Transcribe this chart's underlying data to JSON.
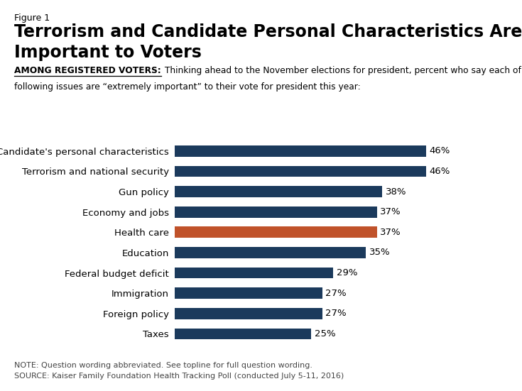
{
  "figure_label": "Figure 1",
  "title_line1": "Terrorism and Candidate Personal Characteristics Are Most",
  "title_line2": "Important to Voters",
  "subtitle_bold": "AMONG REGISTERED VOTERS:",
  "subtitle_rest": " Thinking ahead to the November elections for president, percent who say each of the\nfollowing issues are “extremely important” to their vote for president this year:",
  "categories": [
    "Candidate's personal characteristics",
    "Terrorism and national security",
    "Gun policy",
    "Economy and jobs",
    "Health care",
    "Education",
    "Federal budget deficit",
    "Immigration",
    "Foreign policy",
    "Taxes"
  ],
  "values": [
    46,
    46,
    38,
    37,
    37,
    35,
    29,
    27,
    27,
    25
  ],
  "bar_colors": [
    "#1b3a5c",
    "#1b3a5c",
    "#1b3a5c",
    "#1b3a5c",
    "#c0522a",
    "#1b3a5c",
    "#1b3a5c",
    "#1b3a5c",
    "#1b3a5c",
    "#1b3a5c"
  ],
  "note_line1": "NOTE: Question wording abbreviated. See topline for full question wording.",
  "note_line2": "SOURCE: Kaiser Family Foundation Health Tracking Poll (conducted July 5-11, 2016)",
  "background_color": "#ffffff",
  "text_color": "#000000",
  "dark_text_color": "#333333",
  "note_color": "#444444",
  "label_fontsize": 9.5,
  "value_fontsize": 9.5,
  "title_fontsize": 17,
  "figure_label_fontsize": 9,
  "subtitle_fontsize": 8.8,
  "note_fontsize": 8.0,
  "xlim": [
    0,
    55
  ],
  "bar_height": 0.55
}
